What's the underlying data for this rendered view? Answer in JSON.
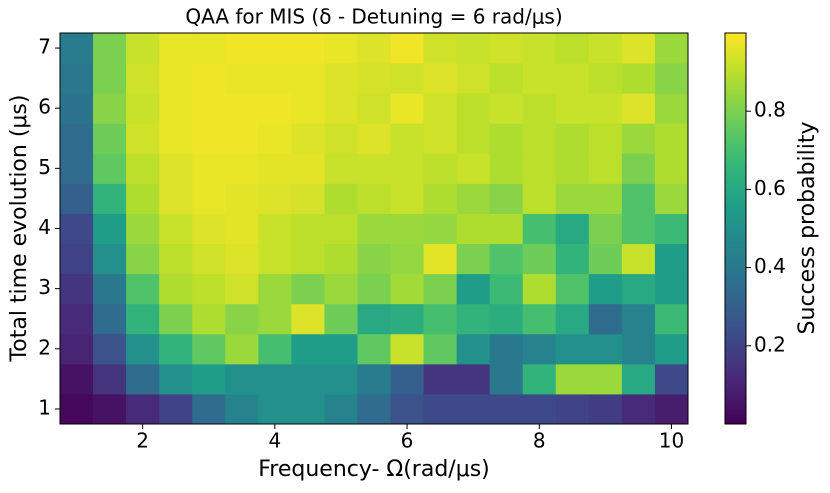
{
  "chart_data": {
    "type": "heatmap",
    "title": "QAA for MIS (δ - Detuning = 6 rad/μs)",
    "x_label": "Frequency- Ω(rad/μs)",
    "y_label": "Total time evolution (μs)",
    "colorbar_label": "Success probability",
    "colormap": "viridis",
    "x": [
      1,
      1.5,
      2,
      2.5,
      3,
      3.5,
      4,
      4.5,
      5,
      5.5,
      6,
      6.5,
      7,
      7.5,
      8,
      8.5,
      9,
      9.5,
      10
    ],
    "y": [
      1,
      1.5,
      2,
      2.5,
      3,
      3.5,
      4,
      4.5,
      5,
      5.5,
      6,
      6.5,
      7
    ],
    "z": [
      [
        0.02,
        0.05,
        0.12,
        0.2,
        0.35,
        0.45,
        0.5,
        0.5,
        0.45,
        0.35,
        0.25,
        0.22,
        0.22,
        0.22,
        0.22,
        0.2,
        0.18,
        0.12,
        0.08
      ],
      [
        0.05,
        0.15,
        0.35,
        0.5,
        0.55,
        0.5,
        0.5,
        0.5,
        0.5,
        0.42,
        0.3,
        0.15,
        0.15,
        0.4,
        0.65,
        0.85,
        0.85,
        0.6,
        0.22
      ],
      [
        0.1,
        0.25,
        0.5,
        0.65,
        0.75,
        0.85,
        0.7,
        0.55,
        0.55,
        0.75,
        0.92,
        0.75,
        0.5,
        0.4,
        0.45,
        0.5,
        0.5,
        0.45,
        0.55
      ],
      [
        0.12,
        0.35,
        0.65,
        0.8,
        0.88,
        0.82,
        0.85,
        0.95,
        0.78,
        0.6,
        0.62,
        0.7,
        0.65,
        0.62,
        0.7,
        0.6,
        0.35,
        0.45,
        0.68
      ],
      [
        0.15,
        0.4,
        0.72,
        0.88,
        0.9,
        0.93,
        0.85,
        0.8,
        0.85,
        0.8,
        0.86,
        0.8,
        0.55,
        0.68,
        0.88,
        0.72,
        0.55,
        0.6,
        0.55
      ],
      [
        0.2,
        0.5,
        0.82,
        0.9,
        0.93,
        0.95,
        0.92,
        0.9,
        0.88,
        0.82,
        0.84,
        0.96,
        0.8,
        0.72,
        0.78,
        0.65,
        0.78,
        0.92,
        0.55
      ],
      [
        0.22,
        0.55,
        0.85,
        0.92,
        0.95,
        0.96,
        0.92,
        0.9,
        0.9,
        0.85,
        0.85,
        0.84,
        0.88,
        0.88,
        0.7,
        0.6,
        0.8,
        0.72,
        0.68
      ],
      [
        0.3,
        0.65,
        0.88,
        0.95,
        0.97,
        0.96,
        0.95,
        0.94,
        0.88,
        0.9,
        0.92,
        0.88,
        0.85,
        0.82,
        0.9,
        0.85,
        0.85,
        0.72,
        0.85
      ],
      [
        0.35,
        0.75,
        0.9,
        0.95,
        0.97,
        0.97,
        0.96,
        0.96,
        0.92,
        0.92,
        0.92,
        0.9,
        0.92,
        0.88,
        0.9,
        0.88,
        0.9,
        0.8,
        0.88
      ],
      [
        0.35,
        0.78,
        0.93,
        0.97,
        0.98,
        0.98,
        0.97,
        0.95,
        0.93,
        0.95,
        0.92,
        0.93,
        0.9,
        0.88,
        0.9,
        0.88,
        0.9,
        0.85,
        0.88
      ],
      [
        0.38,
        0.82,
        0.92,
        0.97,
        0.98,
        0.98,
        0.98,
        0.97,
        0.95,
        0.93,
        0.97,
        0.93,
        0.9,
        0.92,
        0.9,
        0.92,
        0.92,
        0.95,
        0.85
      ],
      [
        0.4,
        0.8,
        0.93,
        0.97,
        0.98,
        0.97,
        0.97,
        0.97,
        0.95,
        0.94,
        0.93,
        0.95,
        0.93,
        0.9,
        0.92,
        0.92,
        0.9,
        0.88,
        0.82
      ],
      [
        0.42,
        0.8,
        0.92,
        0.97,
        0.97,
        0.98,
        0.98,
        0.98,
        0.97,
        0.95,
        0.98,
        0.93,
        0.92,
        0.93,
        0.92,
        0.9,
        0.92,
        0.95,
        0.85
      ]
    ],
    "xlim": [
      0.75,
      10.25
    ],
    "ylim": [
      0.75,
      7.25
    ],
    "xticks": [
      2,
      4,
      6,
      8,
      10
    ],
    "yticks": [
      1,
      2,
      3,
      4,
      5,
      6,
      7
    ],
    "clim": [
      0,
      1
    ],
    "cticks": [
      0.2,
      0.4,
      0.6,
      0.8
    ]
  }
}
